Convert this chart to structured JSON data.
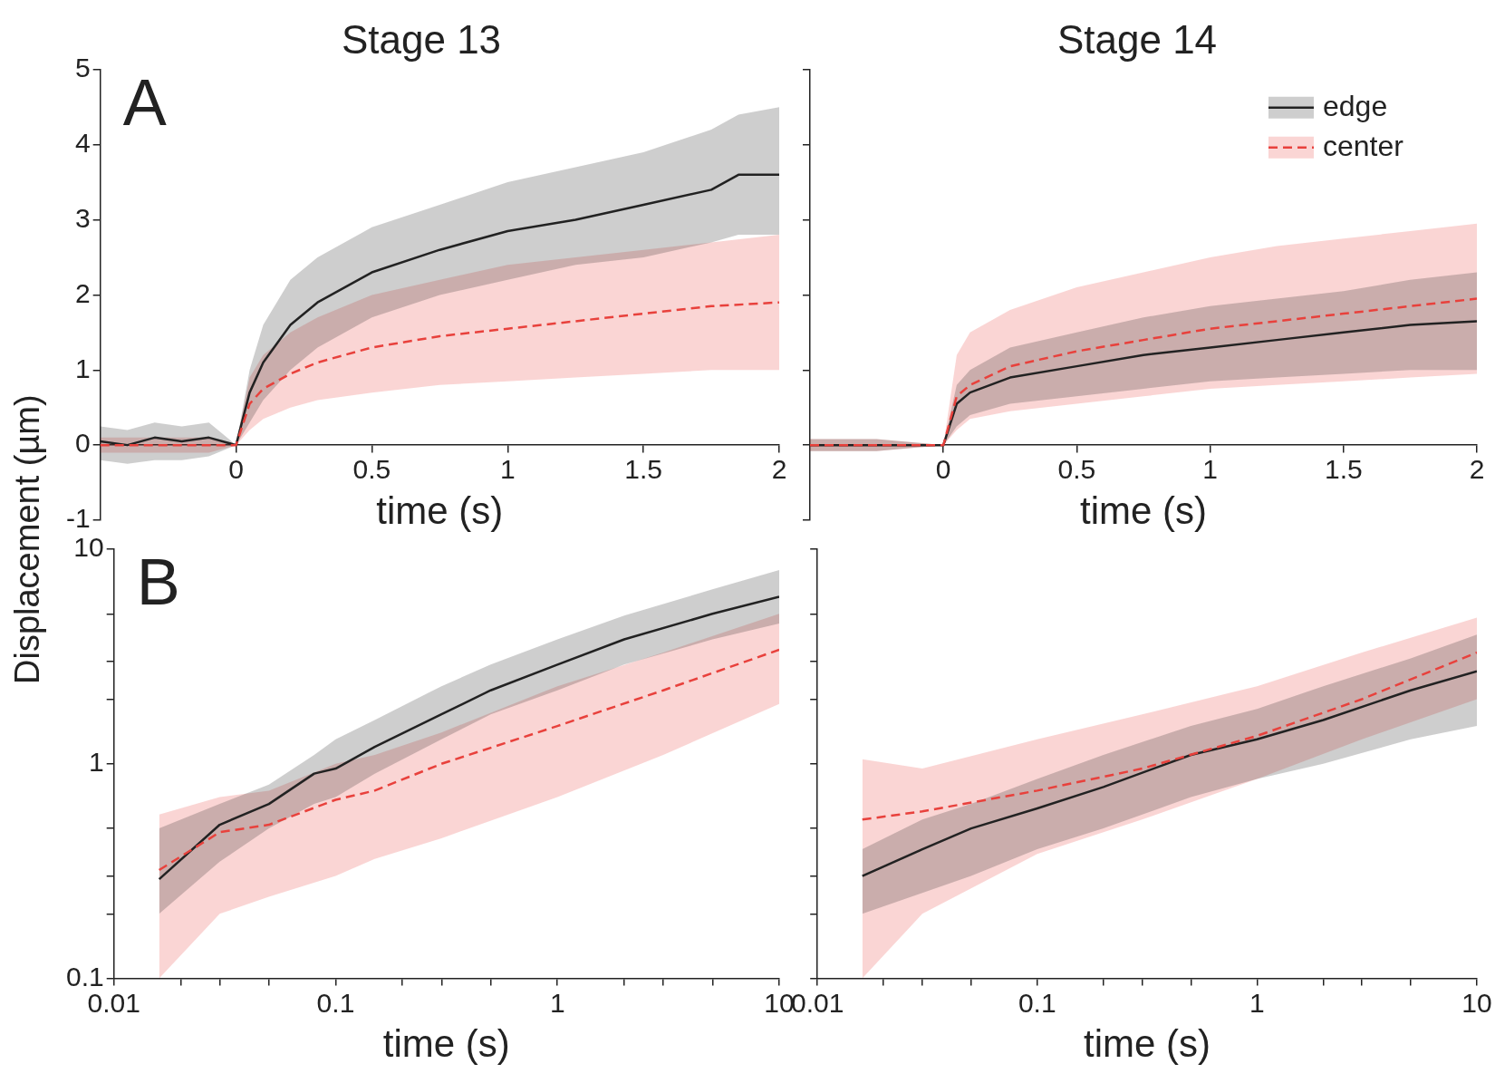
{
  "chart_data": [
    {
      "type": "line",
      "title": "Stage 13",
      "xlabel": "time (s)",
      "ylabel": "Displacement (µm)",
      "annotations": [
        "A"
      ],
      "xlim": [
        -0.5,
        2
      ],
      "ylim": [
        -1,
        5
      ],
      "xticks": [
        0,
        0.5,
        1,
        1.5,
        2
      ],
      "yticks": [
        -1,
        0,
        1,
        2,
        3,
        4,
        5
      ],
      "grid": false,
      "legend": false,
      "marker": "none",
      "series": [
        {
          "color": "#222222",
          "line_style": "solid",
          "x": [
            -0.5,
            -0.4,
            -0.3,
            -0.2,
            -0.1,
            0,
            0.05,
            0.1,
            0.2,
            0.3,
            0.5,
            0.75,
            1,
            1.25,
            1.5,
            1.75,
            1.85,
            2
          ],
          "values": [
            0.05,
            0,
            0.1,
            0.05,
            0.1,
            0,
            0.7,
            1.1,
            1.6,
            1.9,
            2.3,
            2.6,
            2.85,
            3,
            3.2,
            3.4,
            3.6,
            3.6
          ],
          "lower": [
            -0.2,
            -0.25,
            -0.2,
            -0.2,
            -0.15,
            0,
            0.3,
            0.6,
            1.0,
            1.3,
            1.7,
            2.0,
            2.2,
            2.4,
            2.5,
            2.7,
            2.8,
            2.8
          ],
          "upper": [
            0.25,
            0.2,
            0.3,
            0.25,
            0.3,
            0,
            1.0,
            1.6,
            2.2,
            2.5,
            2.9,
            3.2,
            3.5,
            3.7,
            3.9,
            4.2,
            4.4,
            4.5
          ]
        },
        {
          "color": "#e8413c",
          "line_style": "dashed",
          "x": [
            -0.5,
            -0.4,
            -0.3,
            -0.2,
            -0.1,
            0,
            0.05,
            0.1,
            0.2,
            0.3,
            0.5,
            0.75,
            1,
            1.25,
            1.5,
            1.75,
            2
          ],
          "values": [
            0,
            0,
            0,
            0,
            0,
            0,
            0.55,
            0.75,
            0.95,
            1.1,
            1.3,
            1.45,
            1.55,
            1.65,
            1.75,
            1.85,
            1.9
          ],
          "lower": [
            -0.1,
            -0.1,
            -0.1,
            -0.1,
            -0.1,
            0,
            0.2,
            0.35,
            0.5,
            0.6,
            0.7,
            0.8,
            0.85,
            0.9,
            0.95,
            1.0,
            1.0
          ],
          "upper": [
            0.1,
            0.1,
            0.1,
            0.1,
            0.1,
            0,
            0.9,
            1.2,
            1.5,
            1.7,
            2.0,
            2.2,
            2.4,
            2.5,
            2.6,
            2.7,
            2.8
          ]
        }
      ]
    },
    {
      "type": "line",
      "title": "Stage 14",
      "xlabel": "time (s)",
      "xlim": [
        -0.5,
        2
      ],
      "ylim": [
        -1,
        5
      ],
      "xticks": [
        0,
        0.5,
        1,
        1.5,
        2
      ],
      "yticks": [
        -1,
        0,
        1,
        2,
        3,
        4,
        5
      ],
      "tick_labels": "x",
      "grid": false,
      "legend": "top right",
      "marker": "none",
      "series": [
        {
          "name": "edge",
          "color": "#222222",
          "line_style": "solid",
          "x": [
            -0.5,
            -0.25,
            0,
            0.05,
            0.1,
            0.25,
            0.5,
            0.75,
            1,
            1.25,
            1.5,
            1.75,
            2
          ],
          "values": [
            0,
            0,
            0,
            0.55,
            0.7,
            0.9,
            1.05,
            1.2,
            1.3,
            1.4,
            1.5,
            1.6,
            1.65
          ],
          "lower": [
            -0.08,
            -0.08,
            0,
            0.25,
            0.4,
            0.55,
            0.65,
            0.75,
            0.85,
            0.9,
            0.95,
            1.0,
            1.0
          ],
          "upper": [
            0.08,
            0.08,
            0,
            0.8,
            1.0,
            1.3,
            1.5,
            1.7,
            1.85,
            1.95,
            2.05,
            2.2,
            2.3
          ]
        },
        {
          "name": "center",
          "color": "#e8413c",
          "line_style": "dashed",
          "x": [
            -0.5,
            -0.25,
            0,
            0.05,
            0.1,
            0.25,
            0.5,
            0.75,
            1,
            1.25,
            1.5,
            1.75,
            2
          ],
          "values": [
            0,
            0,
            0,
            0.65,
            0.8,
            1.05,
            1.25,
            1.4,
            1.55,
            1.65,
            1.75,
            1.85,
            1.95
          ],
          "lower": [
            -0.08,
            -0.08,
            0,
            0.2,
            0.35,
            0.45,
            0.55,
            0.65,
            0.75,
            0.8,
            0.85,
            0.9,
            0.95
          ],
          "upper": [
            0.08,
            0.08,
            0,
            1.2,
            1.5,
            1.8,
            2.1,
            2.3,
            2.5,
            2.65,
            2.75,
            2.85,
            2.95
          ]
        }
      ]
    },
    {
      "type": "line",
      "xlabel": "time (s)",
      "annotations": [
        "B"
      ],
      "log": "xy",
      "xlim": [
        0.01,
        10
      ],
      "ylim": [
        0.1,
        10
      ],
      "xticks": [
        0.01,
        {
          "value": 0.02,
          "label": null
        },
        {
          "value": 0.03,
          "label": null
        },
        {
          "value": 0.05,
          "label": null
        },
        0.1,
        {
          "value": 0.2,
          "label": null
        },
        {
          "value": 0.3,
          "label": null
        },
        {
          "value": 0.5,
          "label": null
        },
        1,
        {
          "value": 2,
          "label": null
        },
        {
          "value": 3,
          "label": null
        },
        {
          "value": 5,
          "label": null
        },
        10
      ],
      "yticks": [
        0.1,
        {
          "value": 0.2,
          "label": null
        },
        {
          "value": 0.3,
          "label": null
        },
        {
          "value": 0.5,
          "label": null
        },
        1,
        {
          "value": 2,
          "label": null
        },
        {
          "value": 3,
          "label": null
        },
        {
          "value": 5,
          "label": null
        },
        10
      ],
      "grid": false,
      "legend": false,
      "marker": "none",
      "series": [
        {
          "color": "#222222",
          "line_style": "solid",
          "x": [
            0.016,
            0.03,
            0.05,
            0.08,
            0.1,
            0.15,
            0.3,
            0.5,
            1,
            2,
            5,
            10
          ],
          "values": [
            0.29,
            0.52,
            0.65,
            0.9,
            0.95,
            1.2,
            1.7,
            2.2,
            2.9,
            3.8,
            5,
            6
          ],
          "lower": [
            0.2,
            0.35,
            0.5,
            0.65,
            0.7,
            0.9,
            1.3,
            1.7,
            2.2,
            2.9,
            3.8,
            4.5
          ],
          "upper": [
            0.5,
            0.65,
            0.8,
            1.1,
            1.3,
            1.6,
            2.3,
            2.9,
            3.8,
            4.9,
            6.5,
            8
          ]
        },
        {
          "color": "#e8413c",
          "line_style": "dashed",
          "x": [
            0.016,
            0.03,
            0.05,
            0.1,
            0.15,
            0.3,
            1,
            3,
            10
          ],
          "values": [
            0.32,
            0.48,
            0.52,
            0.68,
            0.75,
            1.0,
            1.5,
            2.2,
            3.4
          ],
          "lower": [
            0.1,
            0.2,
            0.24,
            0.3,
            0.36,
            0.45,
            0.7,
            1.1,
            1.9
          ],
          "upper": [
            0.58,
            0.7,
            0.75,
            1.0,
            1.1,
            1.4,
            2.3,
            3.3,
            5
          ]
        }
      ]
    },
    {
      "type": "line",
      "xlabel": "time (s)",
      "log": "xy",
      "xlim": [
        0.01,
        10
      ],
      "ylim": [
        0.1,
        10
      ],
      "xticks": [
        0.01,
        {
          "value": 0.02,
          "label": null
        },
        {
          "value": 0.03,
          "label": null
        },
        {
          "value": 0.05,
          "label": null
        },
        0.1,
        {
          "value": 0.2,
          "label": null
        },
        {
          "value": 0.3,
          "label": null
        },
        {
          "value": 0.5,
          "label": null
        },
        1,
        {
          "value": 2,
          "label": null
        },
        {
          "value": 3,
          "label": null
        },
        {
          "value": 5,
          "label": null
        },
        10
      ],
      "yticks": [
        0.1,
        {
          "value": 0.2,
          "label": null
        },
        {
          "value": 0.3,
          "label": null
        },
        {
          "value": 0.5,
          "label": null
        },
        1,
        {
          "value": 2,
          "label": null
        },
        {
          "value": 3,
          "label": null
        },
        {
          "value": 5,
          "label": null
        },
        10
      ],
      "tick_labels": "x",
      "grid": false,
      "legend": false,
      "marker": "none",
      "series": [
        {
          "color": "#222222",
          "line_style": "solid",
          "x": [
            0.016,
            0.03,
            0.05,
            0.1,
            0.2,
            0.5,
            1,
            2,
            5,
            10
          ],
          "values": [
            0.3,
            0.4,
            0.5,
            0.62,
            0.78,
            1.1,
            1.3,
            1.6,
            2.2,
            2.7
          ],
          "lower": [
            0.2,
            0.25,
            0.3,
            0.4,
            0.5,
            0.7,
            0.85,
            1.0,
            1.3,
            1.5
          ],
          "upper": [
            0.4,
            0.55,
            0.65,
            0.85,
            1.1,
            1.5,
            1.8,
            2.3,
            3.1,
            4
          ]
        },
        {
          "color": "#e8413c",
          "line_style": "dashed",
          "x": [
            0.016,
            0.03,
            0.1,
            0.3,
            1,
            3,
            10
          ],
          "values": [
            0.55,
            0.6,
            0.75,
            0.95,
            1.35,
            2.0,
            3.3
          ],
          "lower": [
            0.1,
            0.2,
            0.38,
            0.55,
            0.85,
            1.3,
            2.0
          ],
          "upper": [
            1.05,
            0.95,
            1.3,
            1.7,
            2.3,
            3.3,
            4.8
          ]
        }
      ]
    }
  ]
}
